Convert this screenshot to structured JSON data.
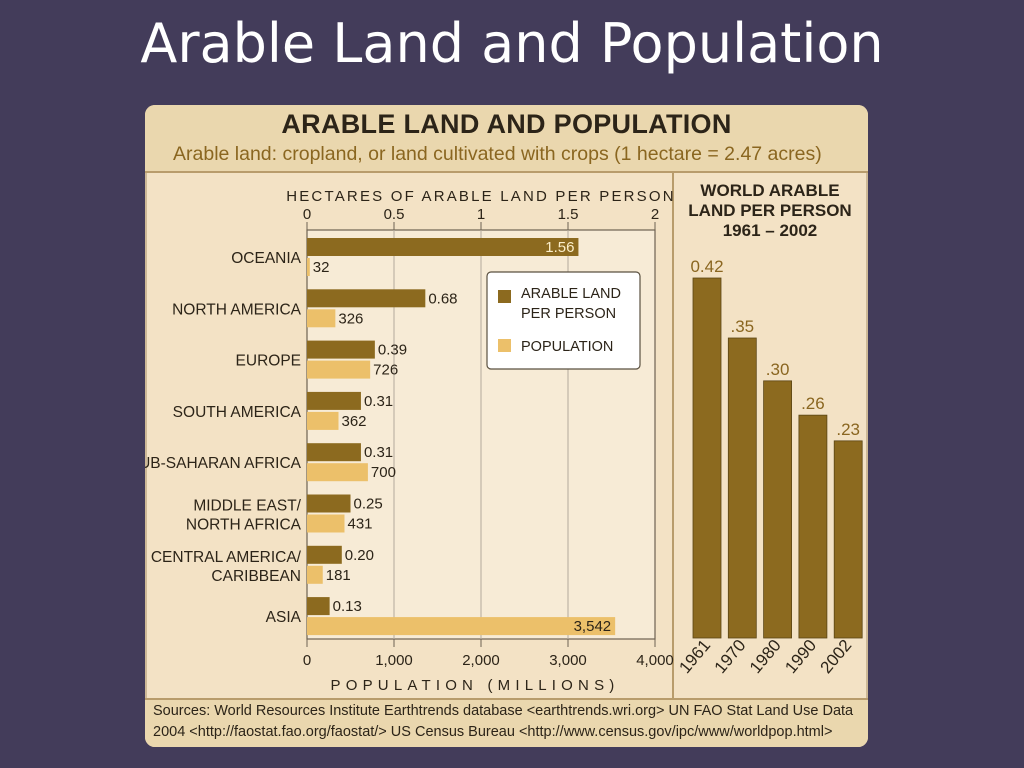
{
  "slide": {
    "title": "Arable Land and Population"
  },
  "figure": {
    "title": "ARABLE LAND AND POPULATION",
    "subtitle": "Arable land: cropland, or land cultivated with crops  (1 hectare = 2.47 acres)",
    "sources_line1": "Sources: World Resources Institute Earthtrends database <earthtrends.wri.org> UN FAO Stat Land Use Data",
    "sources_line2": "2004 <http://faostat.fao.org/faostat/>     US Census Bureau <http://www.census.gov/ipc/www/worldpop.html>"
  },
  "colors": {
    "arable": "#8c6a1f",
    "population": "#ecc06a",
    "panel": "#f3e2c5",
    "background": "#433c5a"
  },
  "chart_data": [
    {
      "type": "bar",
      "orientation": "horizontal",
      "top_axis_label": "HECTARES OF ARABLE LAND PER PERSON",
      "top_ticks": [
        "0",
        "0.5",
        "1",
        "1.5",
        "2"
      ],
      "top_range": [
        0,
        2
      ],
      "bottom_axis_label": "POPULATION   (MILLIONS)",
      "bottom_ticks": [
        "0",
        "1,000",
        "2,000",
        "3,000",
        "4,000"
      ],
      "bottom_range": [
        0,
        4000
      ],
      "grid": true,
      "legend_position": "top-right",
      "categories": [
        [
          "OCEANIA"
        ],
        [
          "NORTH AMERICA"
        ],
        [
          "EUROPE"
        ],
        [
          "SOUTH AMERICA"
        ],
        [
          "SUB-SAHARAN AFRICA"
        ],
        [
          "MIDDLE EAST/",
          "NORTH AFRICA"
        ],
        [
          "CENTRAL AMERICA/",
          "CARIBBEAN"
        ],
        [
          "ASIA"
        ]
      ],
      "series": [
        {
          "name": "ARABLE LAND PER PERSON",
          "legend_lines": [
            "ARABLE LAND",
            "PER PERSON"
          ],
          "values": [
            1.56,
            0.68,
            0.39,
            0.31,
            0.31,
            0.25,
            0.2,
            0.13
          ],
          "labels": [
            "1.56",
            "0.68",
            "0.39",
            "0.31",
            "0.31",
            "0.25",
            "0.20",
            "0.13"
          ]
        },
        {
          "name": "POPULATION",
          "legend_lines": [
            "POPULATION"
          ],
          "values": [
            32,
            326,
            726,
            362,
            700,
            431,
            181,
            3542
          ],
          "labels": [
            "32",
            "326",
            "726",
            "362",
            "700",
            "431",
            "181",
            "3,542"
          ]
        }
      ]
    },
    {
      "type": "bar",
      "title_lines": [
        "WORLD ARABLE",
        "LAND PER PERSON",
        "1961 – 2002"
      ],
      "categories": [
        "1961",
        "1970",
        "1980",
        "1990",
        "2002"
      ],
      "values": [
        0.42,
        0.35,
        0.3,
        0.26,
        0.23
      ],
      "labels": [
        "0.42",
        ".35",
        ".30",
        ".26",
        ".23"
      ]
    }
  ]
}
